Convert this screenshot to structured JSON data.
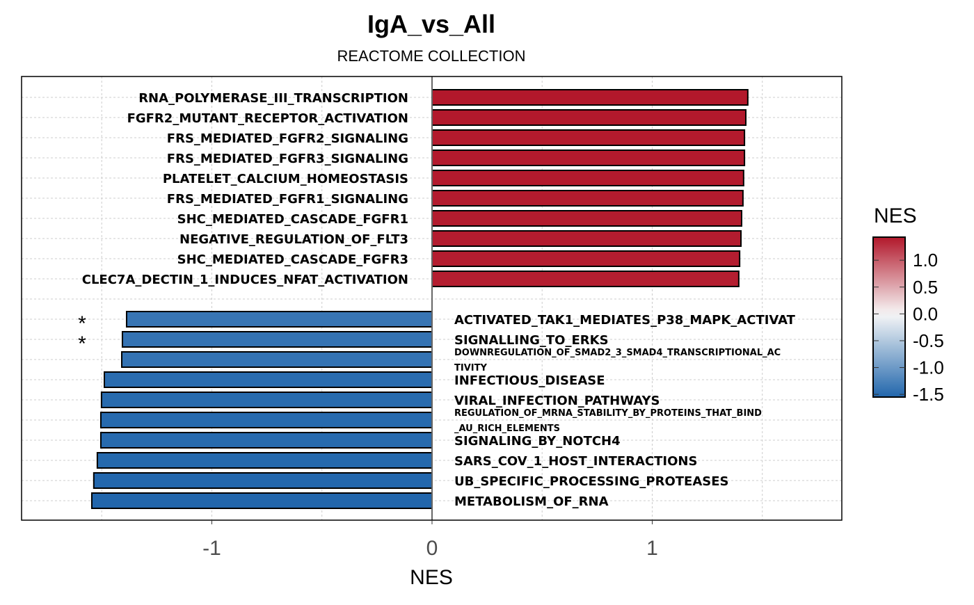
{
  "chart_data": {
    "type": "bar",
    "orientation": "horizontal",
    "title": "IgA_vs_All",
    "subtitle": "REACTOME COLLECTION",
    "xlabel": "NES",
    "xlim": [
      -1.864,
      1.861
    ],
    "xticks": [
      -1,
      0,
      1
    ],
    "xtick_labels": [
      "-1",
      "0",
      "1"
    ],
    "grid": true,
    "positive": [
      {
        "name": "RNA_POLYMERASE_III_TRANSCRIPTION",
        "nes": 1.434,
        "sig": ""
      },
      {
        "name": "FGFR2_MUTANT_RECEPTOR_ACTIVATION",
        "nes": 1.425,
        "sig": ""
      },
      {
        "name": "FRS_MEDIATED_FGFR2_SIGNALING",
        "nes": 1.419,
        "sig": ""
      },
      {
        "name": "FRS_MEDIATED_FGFR3_SIGNALING",
        "nes": 1.419,
        "sig": ""
      },
      {
        "name": "PLATELET_CALCIUM_HOMEOSTASIS",
        "nes": 1.415,
        "sig": ""
      },
      {
        "name": "FRS_MEDIATED_FGFR1_SIGNALING",
        "nes": 1.412,
        "sig": ""
      },
      {
        "name": "SHC_MEDIATED_CASCADE_FGFR1",
        "nes": 1.406,
        "sig": ""
      },
      {
        "name": "NEGATIVE_REGULATION_OF_FLT3",
        "nes": 1.403,
        "sig": ""
      },
      {
        "name": "SHC_MEDIATED_CASCADE_FGFR3",
        "nes": 1.397,
        "sig": ""
      },
      {
        "name": "CLEC7A_DECTIN_1_INDUCES_NFAT_ACTIVATION",
        "nes": 1.393,
        "sig": ""
      }
    ],
    "negative": [
      {
        "name": "ACTIVATED_TAK1_MEDIATES_P38_MAPK_ACTIVAT",
        "nes": -1.387,
        "sig": "*",
        "small": false
      },
      {
        "name": "SIGNALLING_TO_ERKS",
        "nes": -1.406,
        "sig": "*",
        "small": false
      },
      {
        "name": "DOWNREGULATION_OF_SMAD2_3_SMAD4_TRANSCRIPTIONAL_AC",
        "name2": "TIVITY",
        "nes": -1.409,
        "sig": "",
        "small": true
      },
      {
        "name": "INFECTIOUS_DISEASE",
        "nes": -1.488,
        "sig": "",
        "small": false
      },
      {
        "name": "VIRAL_INFECTION_PATHWAYS",
        "nes": -1.501,
        "sig": "",
        "small": false
      },
      {
        "name": "REGULATION_OF_MRNA_STABILITY_BY_PROTEINS_THAT_BIND",
        "name2": "_AU_RICH_ELEMENTS",
        "nes": -1.504,
        "sig": "",
        "small": true
      },
      {
        "name": "SIGNALING_BY_NOTCH4",
        "nes": -1.504,
        "sig": "",
        "small": false
      },
      {
        "name": "SARS_COV_1_HOST_INTERACTIONS",
        "nes": -1.52,
        "sig": "",
        "small": false
      },
      {
        "name": "UB_SPECIFIC_PROCESSING_PROTEASES",
        "nes": -1.536,
        "sig": "",
        "small": false
      },
      {
        "name": "METABOLISM_OF_RNA",
        "nes": -1.545,
        "sig": "",
        "small": false
      }
    ],
    "legend": {
      "title": "NES",
      "placement": "right",
      "ticks": [
        1.0,
        0.5,
        0.0,
        -0.5,
        -1.0,
        -1.5
      ],
      "tick_labels": [
        "1.0",
        "0.5",
        "0.0",
        "-0.5",
        "-1.0",
        "-1.5"
      ],
      "range": [
        -1.55,
        1.43
      ],
      "colors": {
        "low": "#2166AC",
        "mid": "#F7F7F7",
        "high": "#B2182B"
      }
    }
  }
}
